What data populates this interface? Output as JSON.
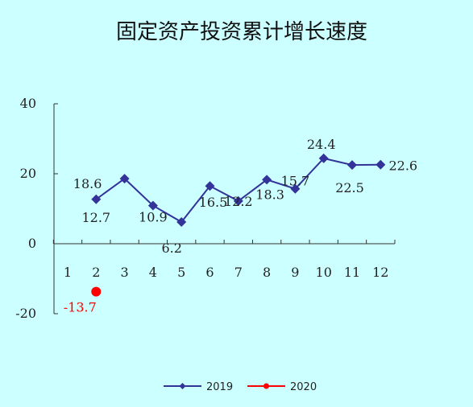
{
  "chart_data": {
    "type": "line",
    "title": "固定资产投资累计增长速度",
    "xlabel": "",
    "ylabel": "",
    "categories": [
      "1",
      "2",
      "3",
      "4",
      "5",
      "6",
      "7",
      "8",
      "9",
      "10",
      "11",
      "12"
    ],
    "ylim": [
      -20,
      40
    ],
    "yticks": [
      "40",
      "20",
      "0",
      "-20"
    ],
    "grid": false,
    "legend": "bottom",
    "colors": {
      "s2019": "#333399",
      "s2020": "#ff0000",
      "background": "#ccffff"
    },
    "series": [
      {
        "name": "2019",
        "points": [
          {
            "x": "2",
            "y": 12.7,
            "label": "12.7"
          },
          {
            "x": "3",
            "y": 18.6,
            "label": "18.6"
          },
          {
            "x": "4",
            "y": 10.9,
            "label": "10.9"
          },
          {
            "x": "5",
            "y": 6.2,
            "label": "6.2"
          },
          {
            "x": "6",
            "y": 16.5,
            "label": "16.5"
          },
          {
            "x": "7",
            "y": 12.2,
            "label": "12.2"
          },
          {
            "x": "8",
            "y": 18.3,
            "label": "18.3"
          },
          {
            "x": "9",
            "y": 15.7,
            "label": "15.7"
          },
          {
            "x": "10",
            "y": 24.4,
            "label": "24.4"
          },
          {
            "x": "11",
            "y": 22.5,
            "label": "22.5"
          },
          {
            "x": "12",
            "y": 22.6,
            "label": "22.6"
          }
        ]
      },
      {
        "name": "2020",
        "points": [
          {
            "x": "2",
            "y": -13.7,
            "label": "-13.7"
          }
        ]
      }
    ]
  }
}
